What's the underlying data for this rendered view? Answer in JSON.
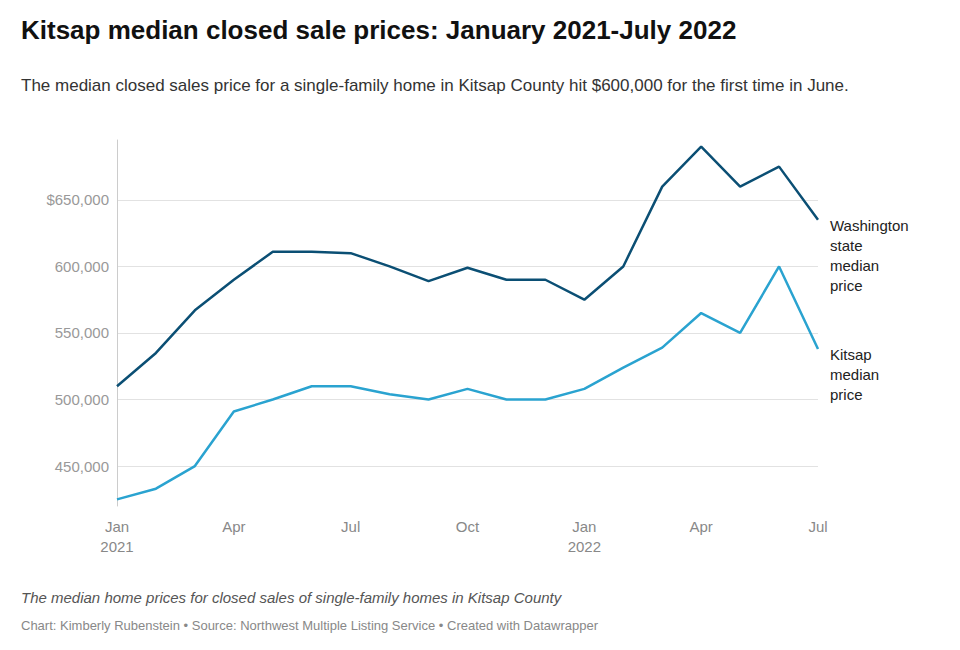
{
  "chart_data": {
    "type": "line",
    "title": "Kitsap median closed sale prices: January 2021-July 2022",
    "subtitle": "The median closed sales price for a single-family home in Kitsap County hit $600,000 for the first time in June.",
    "caption": "The median home prices for closed sales of single-family homes in Kitsap County",
    "source": "Chart: Kimberly Rubenstein • Source: Northwest Multiple Listing Service • Created with Datawrapper",
    "categories": [
      "Jan\n2021",
      null,
      null,
      "Apr",
      null,
      null,
      "Jul",
      null,
      null,
      "Oct",
      null,
      null,
      "Jan\n2022",
      null,
      null,
      "Apr",
      null,
      null,
      "Jul"
    ],
    "series": [
      {
        "name": "Washington state median price",
        "color": "#0b4f74",
        "values": [
          510000,
          535000,
          567000,
          590000,
          611000,
          611000,
          610000,
          600000,
          589000,
          599000,
          590000,
          590000,
          575000,
          600000,
          660000,
          690000,
          660000,
          675000,
          635000
        ]
      },
      {
        "name": "Kitsap median price",
        "color": "#2aa3d0",
        "values": [
          425000,
          433000,
          450000,
          491000,
          500000,
          510000,
          510000,
          504000,
          500000,
          508000,
          500000,
          500000,
          508000,
          524000,
          539000,
          565000,
          550000,
          600000,
          538000
        ]
      }
    ],
    "ylim": [
      420000,
      695000
    ],
    "yticks": [
      {
        "value": 450000,
        "label": "450,000"
      },
      {
        "value": 500000,
        "label": "500,000"
      },
      {
        "value": 550000,
        "label": "550,000"
      },
      {
        "value": 600000,
        "label": "600,000"
      },
      {
        "value": 650000,
        "label": "$650,000"
      }
    ],
    "grid": true
  }
}
